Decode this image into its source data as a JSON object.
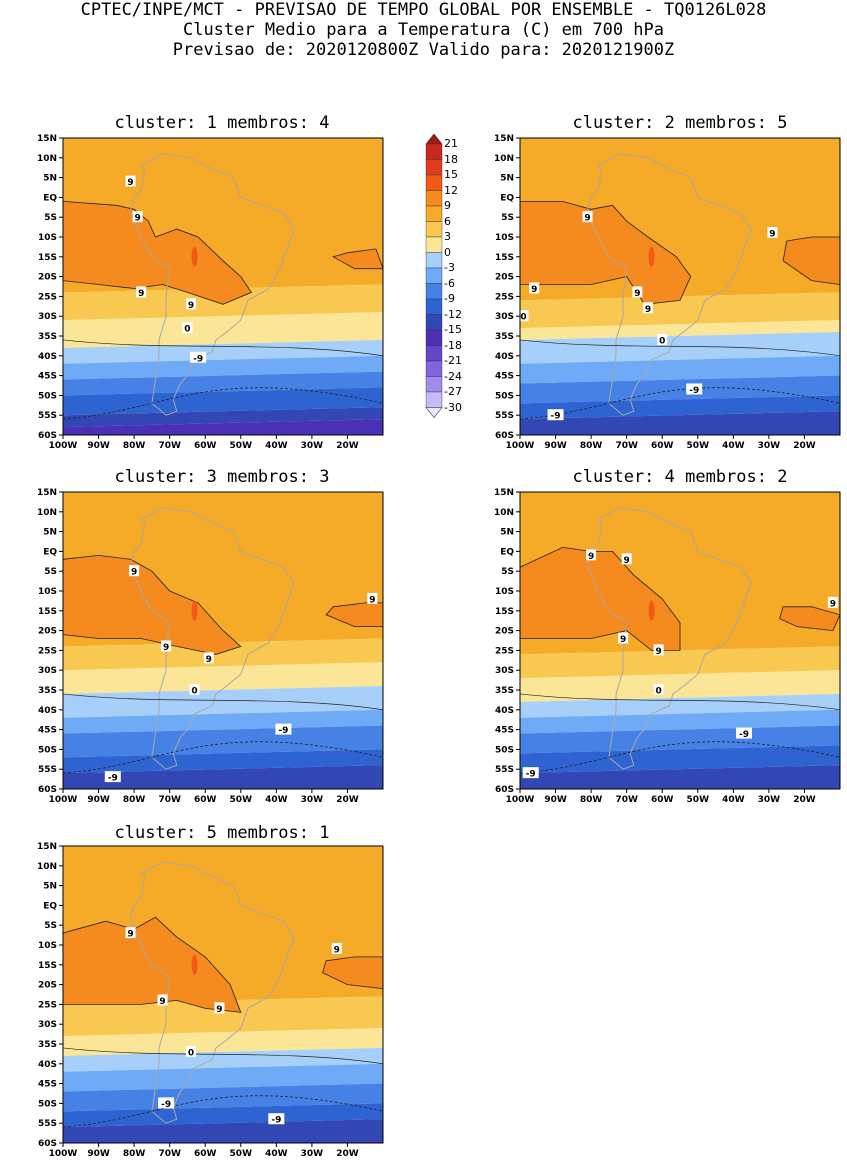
{
  "header": {
    "line1": "CPTEC/INPE/MCT - PREVISAO DE TEMPO GLOBAL POR ENSEMBLE - TQ0126L028",
    "line2": "Cluster Medio para a Temperatura (C) em 700 hPa",
    "line3": "Previsao de: 2020120800Z   Valido para: 2020121900Z"
  },
  "lat_labels": [
    "15N",
    "10N",
    "5N",
    "EQ",
    "5S",
    "10S",
    "15S",
    "20S",
    "25S",
    "30S",
    "35S",
    "40S",
    "45S",
    "50S",
    "55S",
    "60S"
  ],
  "lon_labels": [
    "100W",
    "90W",
    "80W",
    "70W",
    "60W",
    "50W",
    "40W",
    "30W",
    "20W"
  ],
  "colorbar": {
    "labels": [
      "21",
      "18",
      "15",
      "12",
      "9",
      "6",
      "3",
      "0",
      "-3",
      "-6",
      "-9",
      "-12",
      "-15",
      "-18",
      "-21",
      "-24",
      "-27",
      "-30"
    ],
    "colors": [
      "#a01a14",
      "#c8281e",
      "#e23c1e",
      "#f05a14",
      "#f58a1e",
      "#f5aa28",
      "#f8c850",
      "#fae696",
      "#a6d0fa",
      "#6eaaf5",
      "#4682e6",
      "#2d64d2",
      "#3246b4",
      "#4b2fb4",
      "#6446c8",
      "#8264dc",
      "#a08cf0",
      "#c8b9fa",
      "#ebe6ff"
    ],
    "color_meaning": [
      "top arrow",
      "18 to 21",
      "15 to 18",
      "12 to 15",
      "9 to 12",
      "6 to 9",
      "3 to 6",
      "0 to 3",
      "-3 to 0",
      "-6 to -3",
      "-9 to -6",
      "-12 to -9",
      "-15 to -12",
      "-18 to -15",
      "-21 to -18",
      "-24 to -21",
      "-27 to -24",
      "-30 to -27",
      "bottom arrow"
    ]
  },
  "panels": [
    {
      "title": "cluster: 1   membros: 4",
      "contour_labels": [
        "9",
        "9",
        "9",
        "9",
        "0",
        "-9"
      ]
    },
    {
      "title": "cluster: 2   membros: 5",
      "contour_labels": [
        "9",
        "9",
        "9",
        "9",
        "9",
        "0",
        "0",
        "-9",
        "-9"
      ]
    },
    {
      "title": "cluster: 3   membros: 3",
      "contour_labels": [
        "9",
        "9",
        "9",
        "9",
        "0",
        "-9",
        "-9"
      ]
    },
    {
      "title": "cluster: 4   membros: 2",
      "contour_labels": [
        "9",
        "9",
        "9",
        "9",
        "9",
        "0",
        "-9",
        "-9"
      ]
    },
    {
      "title": "cluster: 5   membros: 1",
      "contour_labels": [
        "9",
        "9",
        "9",
        "9",
        "0",
        "-9",
        "-9"
      ]
    }
  ]
}
